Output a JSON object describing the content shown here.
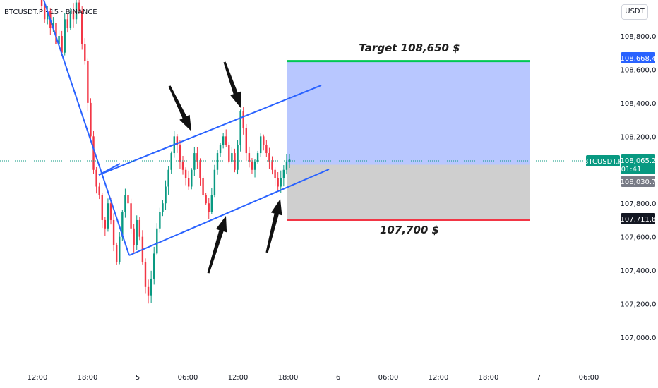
{
  "header": {
    "symbol_line": "BTCUSDT.P · 15 · BINANCE",
    "unit": "USDT"
  },
  "colors": {
    "up": "#089981",
    "down": "#f23645",
    "channel": "#2962ff",
    "target_zone": "#b4c4ff",
    "stop_zone": "#cfcfcf",
    "target_line": "#00c853",
    "stop_line": "#f23645",
    "price_tag": "#089981",
    "target_tag": "#2962ff",
    "entry_tag": "#787b86",
    "stop_tag": "#131722"
  },
  "annotations": {
    "target_label": "Target 108,650 $",
    "stop_label": "107,700 $"
  },
  "price_tags": {
    "current_symbol": "BTCUSDT.P",
    "current_price": "108,065.2",
    "countdown": "01:41",
    "target_price": "108,668.4",
    "entry_price": "108,030.7",
    "stop_price": "107,711.8"
  },
  "chart_data": {
    "type": "candlestick",
    "y_axis_labels": [
      "108,800.0",
      "108,600.0",
      "108,400.0",
      "108,200.0",
      "107,800.0",
      "107,600.0",
      "107,400.0",
      "107,200.0",
      "107,000.0"
    ],
    "x_axis_labels": [
      "12:00",
      "18:00",
      "5",
      "06:00",
      "12:00",
      "18:00",
      "6",
      "06:00",
      "12:00",
      "18:00",
      "7",
      "06:00"
    ],
    "ylim": [
      106900,
      108990
    ],
    "close_path": [
      109050,
      108980,
      108900,
      108950,
      108850,
      108880,
      108750,
      108800,
      108700,
      108900,
      108850,
      108950,
      108900,
      109000,
      108950,
      108750,
      108650,
      108400,
      108200,
      108000,
      107900,
      107850,
      107700,
      107650,
      107800,
      107700,
      107550,
      107450,
      107600,
      107750,
      107850,
      107800,
      107650,
      107550,
      107700,
      107600,
      107450,
      107300,
      107250,
      107350,
      107500,
      107650,
      107750,
      107800,
      107900,
      108000,
      108100,
      108200,
      108150,
      108050,
      108000,
      107950,
      107900,
      108000,
      108100,
      108050,
      107950,
      107850,
      107800,
      107750,
      107850,
      108000,
      108100,
      108150,
      108200,
      108150,
      108050,
      108100,
      108000,
      108150,
      108350,
      108250,
      108100,
      108050,
      108000,
      108050,
      108100,
      108200,
      108150,
      108100,
      108050,
      108000,
      107950,
      107900,
      107950,
      108000,
      108050,
      108065
    ],
    "position": {
      "target": 108650,
      "entry": 108030.7,
      "stop": 107700
    },
    "channel": {
      "upper": [
        [
          108000,
          0.149
        ],
        [
          108510,
          0.487
        ]
      ],
      "lower": [
        [
          107530,
          0.196
        ],
        [
          108000,
          0.5
        ]
      ],
      "left_leg": [
        [
          108990,
          0.07
        ],
        [
          107530,
          0.196
        ]
      ],
      "bridge": [
        [
          108000,
          0.149
        ],
        [
          108060,
          0.186
        ]
      ]
    },
    "arrows_at_index": [
      48,
      70,
      60,
      83
    ]
  }
}
